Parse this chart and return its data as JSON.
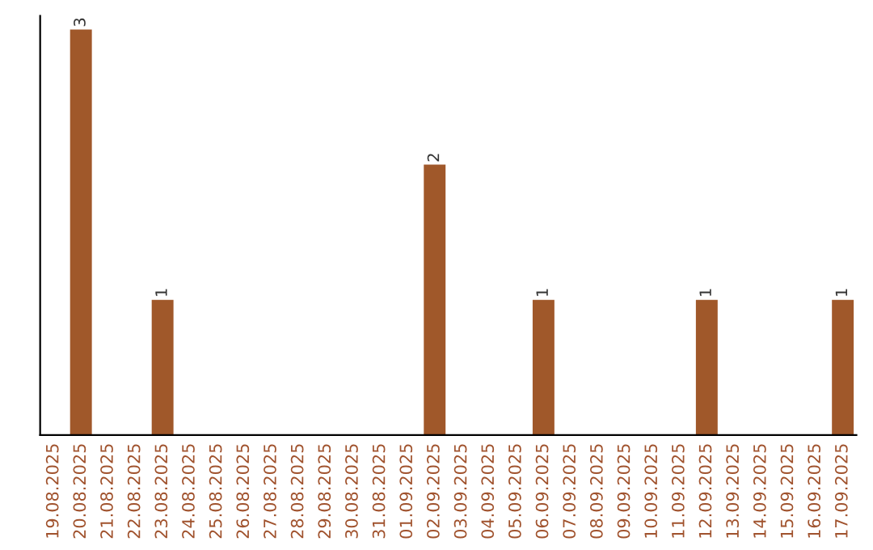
{
  "chart_data": {
    "type": "bar",
    "categories": [
      "19.08.2025",
      "20.08.2025",
      "21.08.2025",
      "22.08.2025",
      "23.08.2025",
      "24.08.2025",
      "25.08.2025",
      "26.08.2025",
      "27.08.2025",
      "28.08.2025",
      "29.08.2025",
      "30.08.2025",
      "31.08.2025",
      "01.09.2025",
      "02.09.2025",
      "03.09.2025",
      "04.09.2025",
      "05.09.2025",
      "06.09.2025",
      "07.09.2025",
      "08.09.2025",
      "09.09.2025",
      "10.09.2025",
      "11.09.2025",
      "12.09.2025",
      "13.09.2025",
      "14.09.2025",
      "15.09.2025",
      "16.09.2025",
      "17.09.2025"
    ],
    "values": [
      0,
      3,
      0,
      0,
      1,
      0,
      0,
      0,
      0,
      0,
      0,
      0,
      0,
      0,
      2,
      0,
      0,
      0,
      1,
      0,
      0,
      0,
      0,
      0,
      1,
      0,
      0,
      0,
      0,
      1
    ],
    "value_labels": [
      null,
      "3",
      null,
      null,
      "1",
      null,
      null,
      null,
      null,
      null,
      null,
      null,
      null,
      null,
      "2",
      null,
      null,
      null,
      "1",
      null,
      null,
      null,
      null,
      null,
      "1",
      null,
      null,
      null,
      null,
      "1"
    ],
    "color": "#a0582a",
    "ylim": [
      0,
      3.1
    ],
    "tick_labels": "x",
    "grid": false,
    "legend": false
  }
}
